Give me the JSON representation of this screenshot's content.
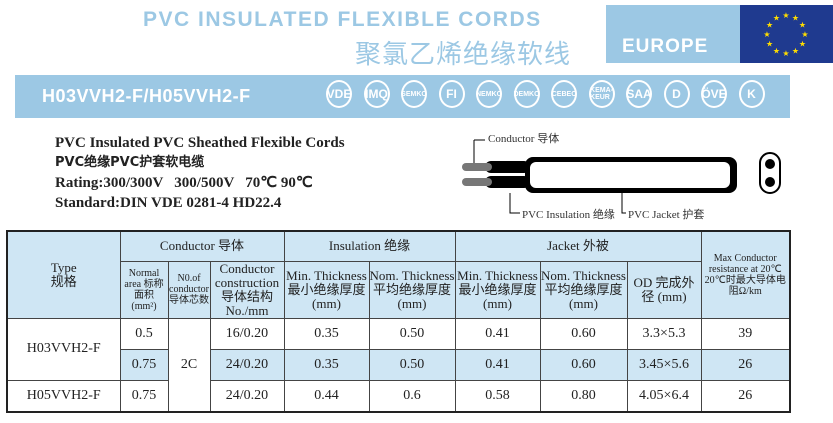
{
  "header": {
    "title_en": "PVC INSULATED FLEXIBLE CORDS",
    "title_cn": "聚氯乙烯绝缘软线",
    "region": "EUROPE"
  },
  "model_bar": {
    "label": "H03VVH2-F/H05VVH2-F",
    "certifications": [
      "VDE",
      "IMQ",
      "SEMKO",
      "FI",
      "NEMKO",
      "DEMKO",
      "CEBEC",
      "KEMA-KEUR",
      "SAA",
      "D",
      "ÖVE",
      "K"
    ]
  },
  "description": {
    "line1": "PVC Insulated PVC Sheathed Flexible Cords",
    "line2": "PVC绝缘PVC护套软电缆",
    "line3": "Rating:300/300V   300/500V   70℃ 90℃",
    "line4": "Standard:DIN VDE 0281-4 HD22.4"
  },
  "diagram": {
    "conductor": "Conductor 导体",
    "insulation": "PVC Insulation 绝缘",
    "jacket": "PVC Jacket 护套"
  },
  "table": {
    "type": "Type",
    "type_cn": "规格",
    "conductor": "Conductor 导体",
    "insulation": "Insulation 绝缘",
    "jacket": "Jacket 外被",
    "max_res": "Max Conductor resistance at 20℃ 20℃时最大导体电阻Ω/km",
    "area": "Normal area 标称面积 (mm²)",
    "num": "N0.of conductor 导体芯数",
    "construction": "Conductor construction 导体结构 No./mm",
    "ins_min": "Min. Thickness 最小绝缘厚度 (mm)",
    "ins_nom": "Nom. Thickness 平均绝缘厚度 (mm)",
    "jk_min": "Min. Thickness 最小绝缘厚度 (mm)",
    "jk_nom": "Nom. Thickness 平均绝缘厚度 (mm)",
    "od": "OD 完成外径 (mm)",
    "rows": [
      {
        "type": "H03VVH2-F",
        "area": "0.5",
        "cores": "2C",
        "construction": "16/0.20",
        "ins_min": "0.35",
        "ins_nom": "0.50",
        "jk_min": "0.41",
        "jk_nom": "0.60",
        "od": "3.3×5.3",
        "res": "39"
      },
      {
        "area": "0.75",
        "construction": "24/0.20",
        "ins_min": "0.35",
        "ins_nom": "0.50",
        "jk_min": "0.41",
        "jk_nom": "0.60",
        "od": "3.45×5.6",
        "res": "26"
      },
      {
        "type": "H05VVH2-F",
        "area": "0.75",
        "construction": "24/0.20",
        "ins_min": "0.44",
        "ins_nom": "0.6",
        "jk_min": "0.58",
        "jk_nom": "0.80",
        "od": "4.05×6.4",
        "res": "26"
      }
    ]
  }
}
